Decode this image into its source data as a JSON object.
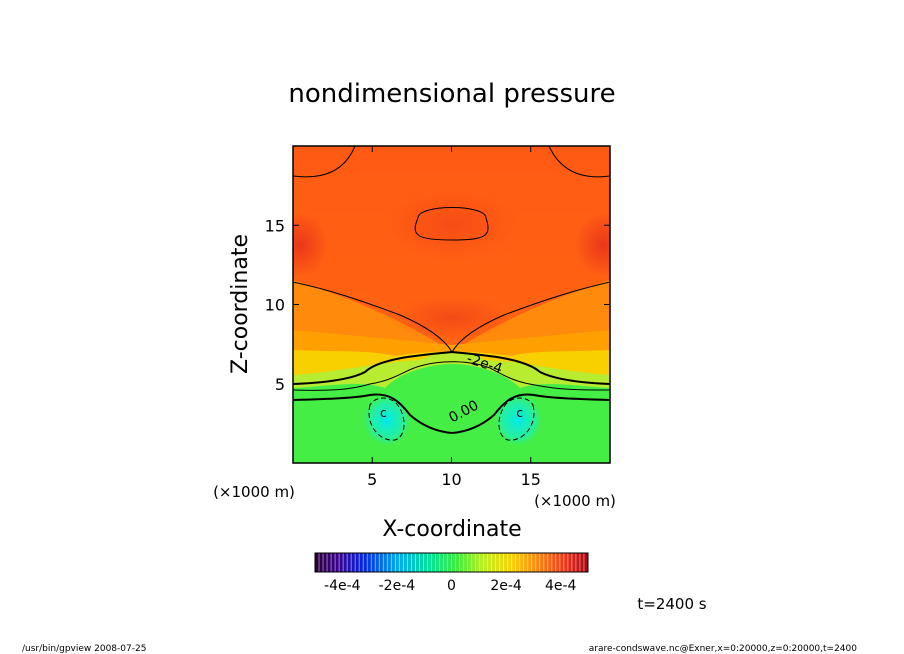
{
  "chart_data": {
    "type": "heatmap",
    "title": "nondimensional pressure",
    "xlabel": "X-coordinate",
    "ylabel": "Z-coordinate",
    "x_unit": "(×1000 m)",
    "z_unit": "(×1000 m)",
    "xlim": [
      0,
      20
    ],
    "zlim": [
      0,
      20
    ],
    "x_ticks": [
      5,
      10,
      15
    ],
    "z_ticks": [
      5,
      10,
      15
    ],
    "contour_labels": [
      {
        "text": "-2e-4",
        "x": 12.0,
        "z": 6.0
      },
      {
        "text": "0.00",
        "x": 10.9,
        "z": 3.0
      },
      {
        "text": "c",
        "x": 5.7,
        "z": 2.9
      },
      {
        "text": "c",
        "x": 14.3,
        "z": 2.9
      }
    ],
    "colorbar": {
      "min": -0.0005,
      "max": 0.0005,
      "tick_values": [
        -0.0004,
        -0.0002,
        0,
        0.0002,
        0.0004
      ],
      "tick_labels": [
        "-4e-4",
        "-2e-4",
        "0",
        "2e-4",
        "4e-4"
      ]
    },
    "time_label": "t=2400 s"
  },
  "footer": {
    "left": "/usr/bin/gpview   2008-07-25",
    "right": "arare-condswave.nc@Exner,x=0:20000,z=0:20000,t=2400"
  }
}
